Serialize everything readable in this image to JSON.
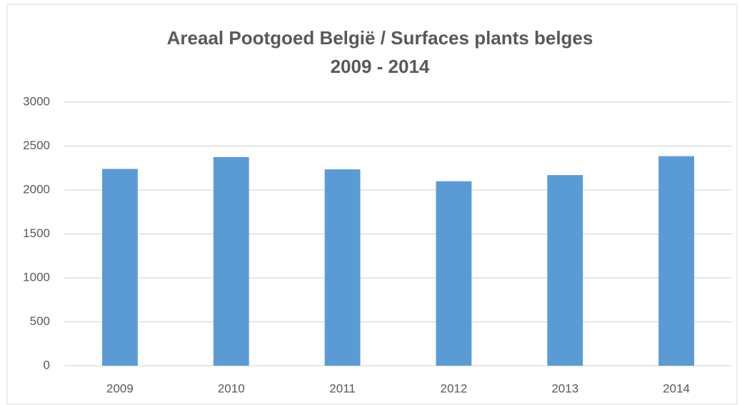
{
  "chart_data": {
    "type": "bar",
    "title": "Areaal Pootgoed België / Surfaces plants belges",
    "subtitle": "2009 - 2014",
    "categories": [
      "2009",
      "2010",
      "2011",
      "2012",
      "2013",
      "2014"
    ],
    "values": [
      2240,
      2375,
      2235,
      2100,
      2170,
      2385
    ],
    "color": "#5b9bd5",
    "ylim": [
      0,
      3000
    ],
    "yticks": [
      0,
      500,
      1000,
      1500,
      2000,
      2500,
      3000
    ],
    "grid": true
  }
}
